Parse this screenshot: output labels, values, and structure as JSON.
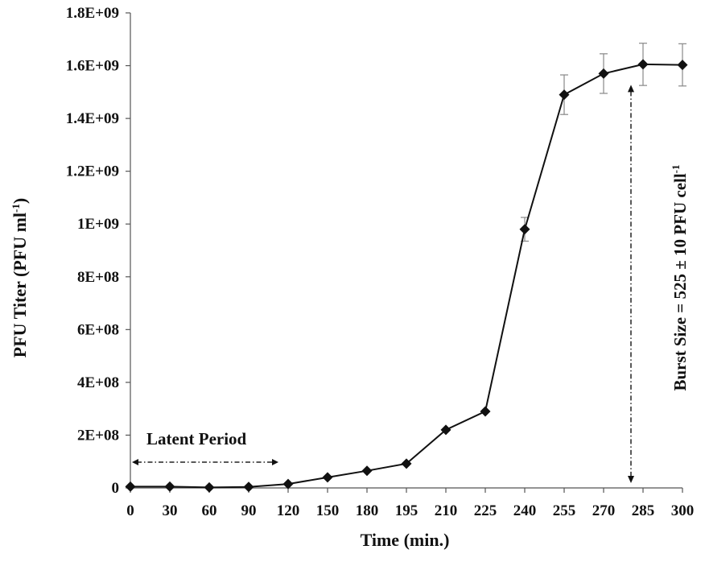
{
  "chart_data": {
    "type": "line",
    "xlabel": "Time (min.)",
    "ylabel": "PFU Titer (PFU ml",
    "ylabel_sup": "-1",
    "ylabel_close": ")",
    "categories": [
      "0",
      "30",
      "60",
      "90",
      "120",
      "150",
      "180",
      "195",
      "210",
      "225",
      "240",
      "255",
      "270",
      "285",
      "300"
    ],
    "y_ticks": [
      "0",
      "2E+08",
      "4E+08",
      "6E+08",
      "8E+08",
      "1E+09",
      "1.2E+09",
      "1.4E+09",
      "1.6E+09",
      "1.8E+09"
    ],
    "ylim": [
      0,
      1800000000
    ],
    "series": [
      {
        "values": [
          5000000,
          5000000,
          2000000,
          4000000,
          15000000,
          40000000,
          65000000,
          92000000,
          220000000,
          290000000,
          980000000,
          1490000000,
          1570000000,
          1605000000,
          1603000000
        ],
        "errors": [
          0,
          0,
          0,
          0,
          0,
          0,
          0,
          0,
          0,
          0,
          45000000,
          75000000,
          75000000,
          80000000,
          80000000
        ]
      }
    ],
    "grid": false,
    "legend": "none",
    "annotations": {
      "latent_period": "Latent Period",
      "burst_size": "Burst Size = 525 ± 10 PFU cell",
      "burst_size_sup": "-1"
    },
    "colors": {
      "line": "#111111",
      "error_bar": "#888888"
    }
  }
}
